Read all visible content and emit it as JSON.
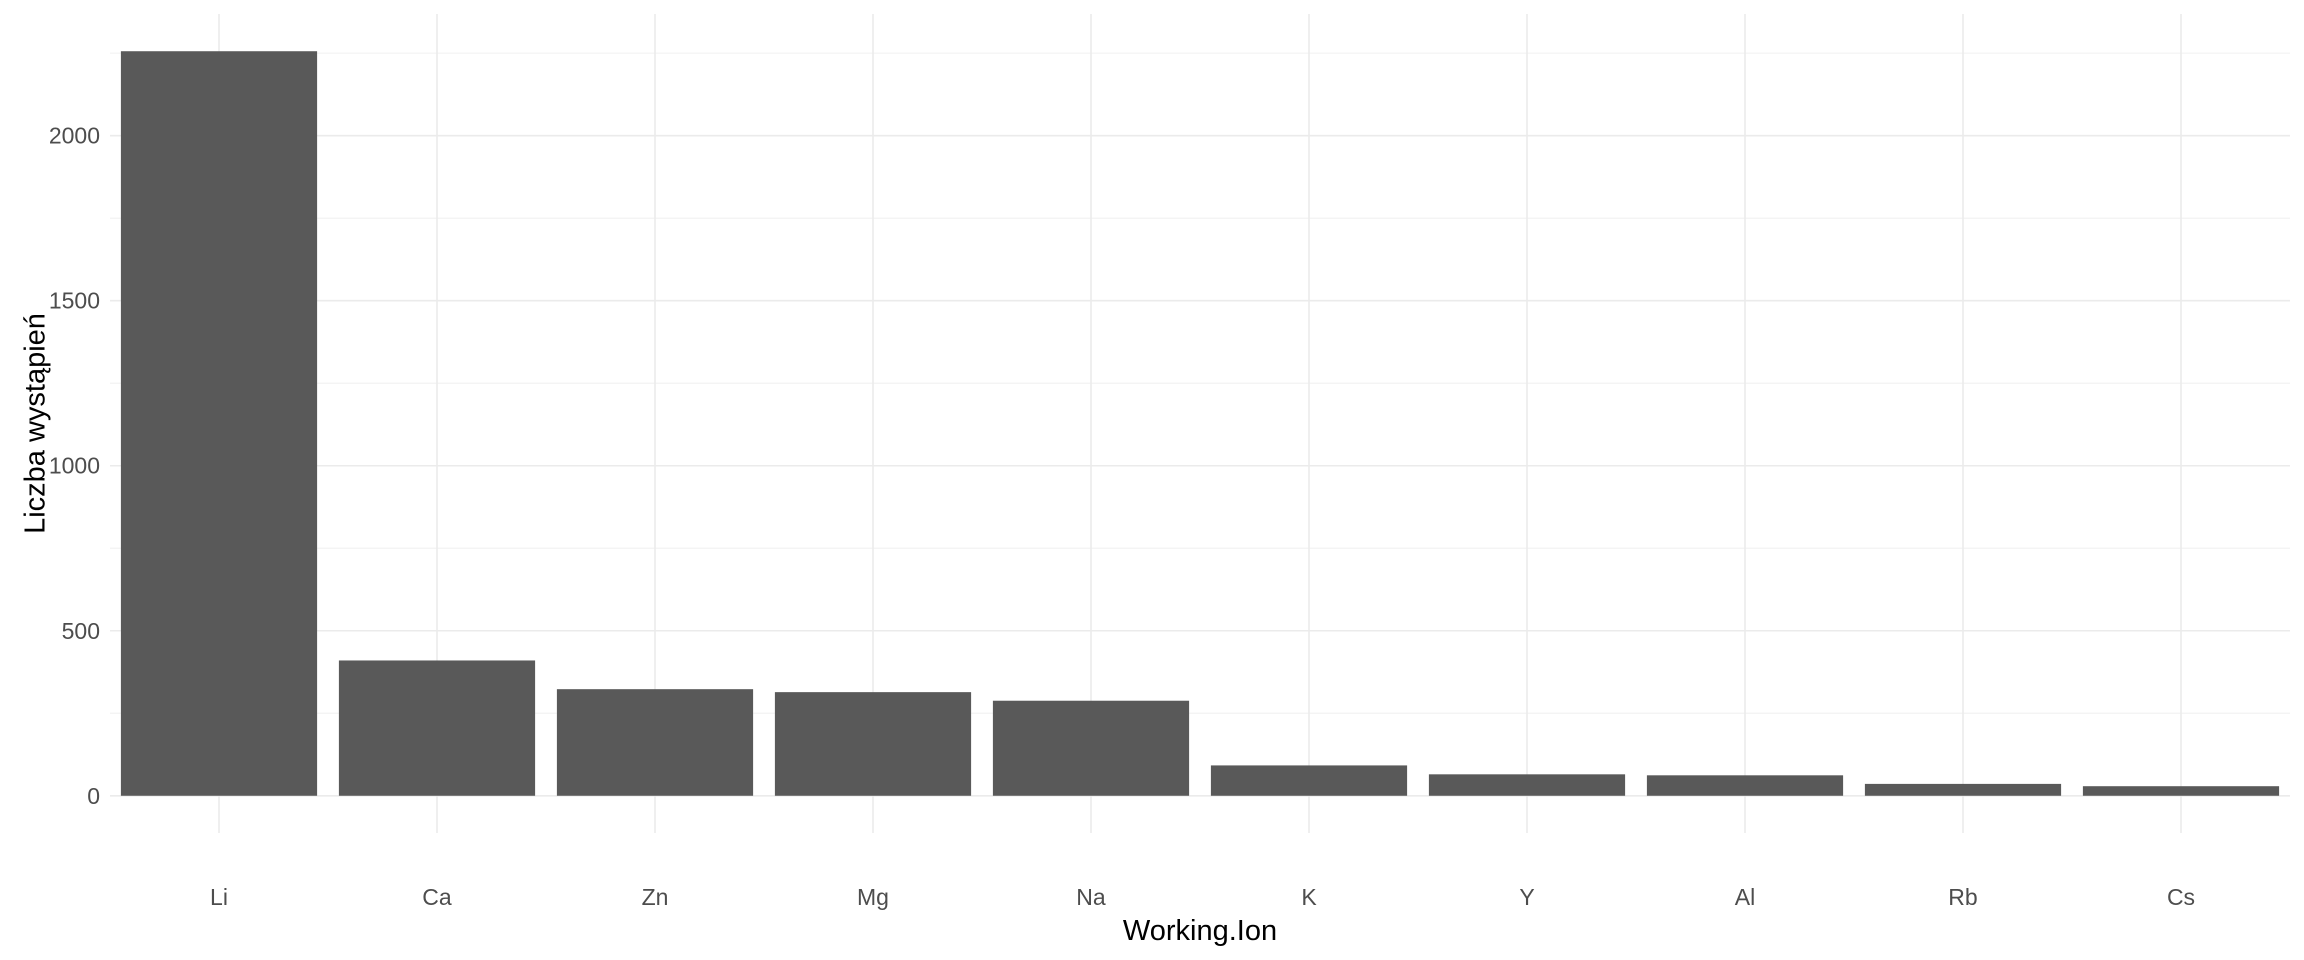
{
  "chart_data": {
    "type": "bar",
    "title": "",
    "xlabel": "Working.Ion",
    "ylabel": "Liczba wystąpień",
    "categories": [
      "Li",
      "Ca",
      "Zn",
      "Mg",
      "Na",
      "K",
      "Y",
      "Al",
      "Rb",
      "Cs"
    ],
    "values": [
      2256,
      410,
      323,
      314,
      288,
      92,
      65,
      62,
      36,
      29
    ],
    "yticks": [
      0,
      500,
      1000,
      1500,
      2000
    ],
    "ylim": [
      0,
      2256
    ],
    "grid": true,
    "bar_color": "#595959",
    "legend": "none"
  }
}
